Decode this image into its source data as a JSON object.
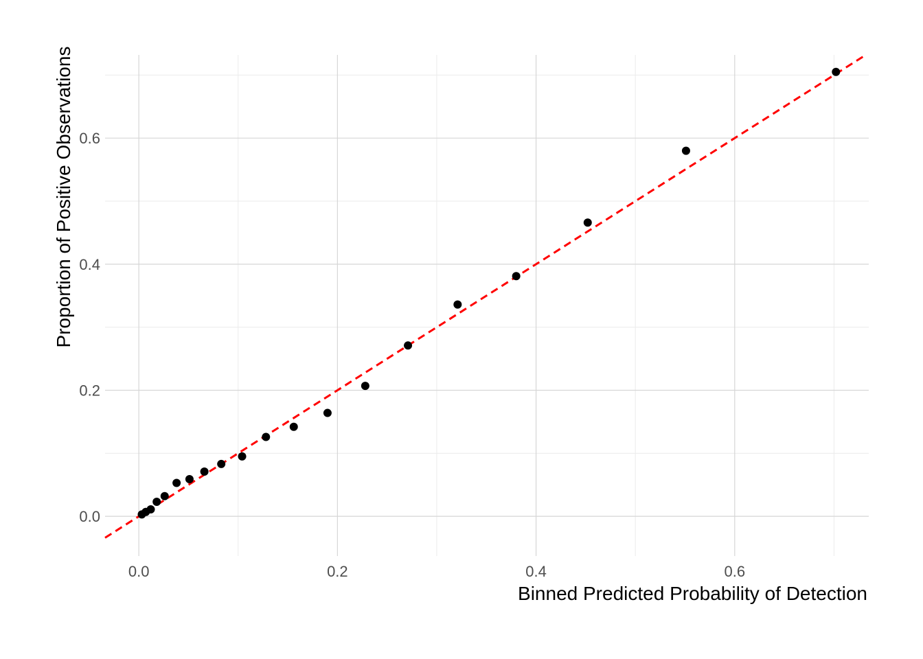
{
  "chart_data": {
    "type": "scatter",
    "title": "",
    "xlabel": "Binned Predicted Probability of Detection",
    "ylabel": "Proportion of Positive Observations",
    "xlim": [
      -0.034,
      0.735
    ],
    "ylim": [
      -0.063,
      0.732
    ],
    "x_ticks": [
      0.0,
      0.2,
      0.4,
      0.6
    ],
    "x_tick_labels": [
      "0.0",
      "0.2",
      "0.4",
      "0.6"
    ],
    "x_minor_ticks": [
      0.1,
      0.3,
      0.5,
      0.7
    ],
    "y_ticks": [
      0.0,
      0.2,
      0.4,
      0.6
    ],
    "y_tick_labels": [
      "0.0",
      "0.2",
      "0.4",
      "0.6"
    ],
    "y_minor_ticks": [
      0.1,
      0.3,
      0.5,
      0.7
    ],
    "grid": true,
    "legend": "none",
    "points": {
      "x": [
        0.003,
        0.007,
        0.012,
        0.018,
        0.026,
        0.038,
        0.051,
        0.066,
        0.083,
        0.104,
        0.128,
        0.156,
        0.19,
        0.228,
        0.271,
        0.321,
        0.38,
        0.452,
        0.551,
        0.702
      ],
      "y": [
        0.003,
        0.007,
        0.011,
        0.023,
        0.032,
        0.053,
        0.059,
        0.071,
        0.083,
        0.095,
        0.126,
        0.142,
        0.164,
        0.207,
        0.271,
        0.336,
        0.381,
        0.466,
        0.58,
        0.705
      ],
      "color": "#000000"
    },
    "reference_line": {
      "style": "dashed",
      "slope": 1,
      "intercept": 0,
      "color": "#ff0000"
    }
  }
}
